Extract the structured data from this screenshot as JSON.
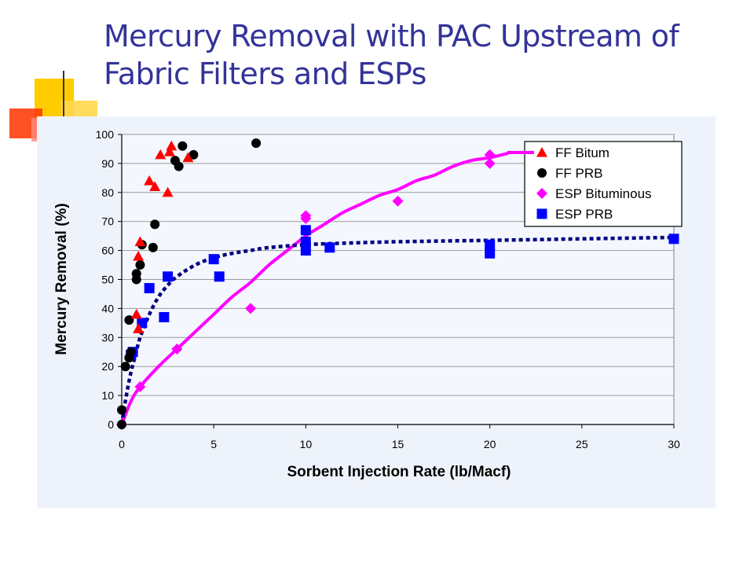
{
  "slide": {
    "title_line1": "Mercury Removal with PAC Upstream of",
    "title_line2": "Fabric Filters and ESPs"
  },
  "colors": {
    "title": "#333399",
    "panel_bg": "#eef3fb",
    "ff_bitum": "#ff0000",
    "ff_prb": "#000000",
    "esp_bituminous": "#ff00ff",
    "esp_prb": "#0000ff",
    "esp_prb_fit": "#000080",
    "esp_bit_fit": "#ff00ff"
  },
  "chart_data": {
    "type": "scatter",
    "xlabel": "Sorbent Injection Rate (lb/Macf)",
    "ylabel": "Mercury Removal (%)",
    "xlim": [
      0,
      30
    ],
    "ylim": [
      0,
      100
    ],
    "x_ticks": [
      0,
      5,
      10,
      15,
      20,
      25,
      30
    ],
    "y_ticks": [
      0,
      10,
      20,
      30,
      40,
      50,
      60,
      70,
      80,
      90,
      100
    ],
    "grid": "horizontal",
    "legend_position": "top-right",
    "series": [
      {
        "name": "FF Bitum",
        "marker": "triangle",
        "color": "#ff0000",
        "points": [
          [
            0.8,
            38
          ],
          [
            0.9,
            58
          ],
          [
            0.9,
            33
          ],
          [
            1.0,
            63
          ],
          [
            1.5,
            84
          ],
          [
            1.8,
            82
          ],
          [
            2.1,
            93
          ],
          [
            2.5,
            80
          ],
          [
            2.6,
            94
          ],
          [
            2.7,
            96
          ],
          [
            3.6,
            92
          ]
        ]
      },
      {
        "name": "FF PRB",
        "marker": "circle",
        "color": "#000000",
        "points": [
          [
            0.0,
            0
          ],
          [
            0.0,
            5
          ],
          [
            0.2,
            20
          ],
          [
            0.4,
            23
          ],
          [
            0.4,
            36
          ],
          [
            0.5,
            25
          ],
          [
            0.8,
            50
          ],
          [
            0.8,
            52
          ],
          [
            1.0,
            55
          ],
          [
            1.1,
            62
          ],
          [
            1.7,
            61
          ],
          [
            1.8,
            69
          ],
          [
            2.9,
            91
          ],
          [
            3.1,
            89
          ],
          [
            3.3,
            96
          ],
          [
            3.9,
            93
          ],
          [
            7.3,
            97
          ]
        ]
      },
      {
        "name": "ESP Bituminous",
        "marker": "diamond",
        "color": "#ff00ff",
        "points": [
          [
            0.0,
            0
          ],
          [
            1.0,
            13
          ],
          [
            3.0,
            26
          ],
          [
            7.0,
            40
          ],
          [
            10.0,
            71
          ],
          [
            10.0,
            72
          ],
          [
            15.0,
            77
          ],
          [
            20.0,
            90
          ],
          [
            20.0,
            93
          ]
        ]
      },
      {
        "name": "ESP PRB",
        "marker": "square",
        "color": "#0000ff",
        "points": [
          [
            0.5,
            24
          ],
          [
            0.6,
            25
          ],
          [
            1.1,
            35
          ],
          [
            1.5,
            47
          ],
          [
            2.3,
            37
          ],
          [
            2.5,
            51
          ],
          [
            5.0,
            57
          ],
          [
            5.3,
            51
          ],
          [
            10.0,
            60
          ],
          [
            10.0,
            63
          ],
          [
            10.0,
            67
          ],
          [
            11.3,
            61
          ],
          [
            20.0,
            59
          ],
          [
            20.0,
            62
          ],
          [
            30.0,
            64
          ]
        ]
      }
    ],
    "trendlines": [
      {
        "series": "ESP Bituminous",
        "style": "solid",
        "color": "#ff00ff",
        "points": [
          [
            0,
            0
          ],
          [
            0.5,
            8
          ],
          [
            1,
            13
          ],
          [
            2,
            20
          ],
          [
            3,
            26
          ],
          [
            4,
            32
          ],
          [
            5,
            38
          ],
          [
            6,
            44
          ],
          [
            7,
            49
          ],
          [
            8,
            55
          ],
          [
            9,
            60
          ],
          [
            10,
            65
          ],
          [
            11,
            69
          ],
          [
            12,
            73
          ],
          [
            13,
            76
          ],
          [
            14,
            79
          ],
          [
            15,
            81
          ],
          [
            16,
            84
          ],
          [
            17,
            86
          ],
          [
            18,
            89
          ],
          [
            19,
            91
          ],
          [
            20,
            92
          ],
          [
            21,
            93.5
          ]
        ]
      },
      {
        "series": "ESP PRB",
        "style": "dotted",
        "color": "#000080",
        "points": [
          [
            0,
            0
          ],
          [
            0.25,
            10
          ],
          [
            0.5,
            18
          ],
          [
            0.75,
            24
          ],
          [
            1,
            30
          ],
          [
            1.5,
            38
          ],
          [
            2,
            44
          ],
          [
            2.5,
            48
          ],
          [
            3,
            51
          ],
          [
            4,
            55
          ],
          [
            5,
            57.5
          ],
          [
            6,
            59
          ],
          [
            7,
            60
          ],
          [
            8,
            61
          ],
          [
            10,
            62
          ],
          [
            12,
            62.5
          ],
          [
            15,
            63
          ],
          [
            20,
            63.5
          ],
          [
            25,
            64
          ],
          [
            30,
            64.5
          ]
        ]
      }
    ]
  }
}
